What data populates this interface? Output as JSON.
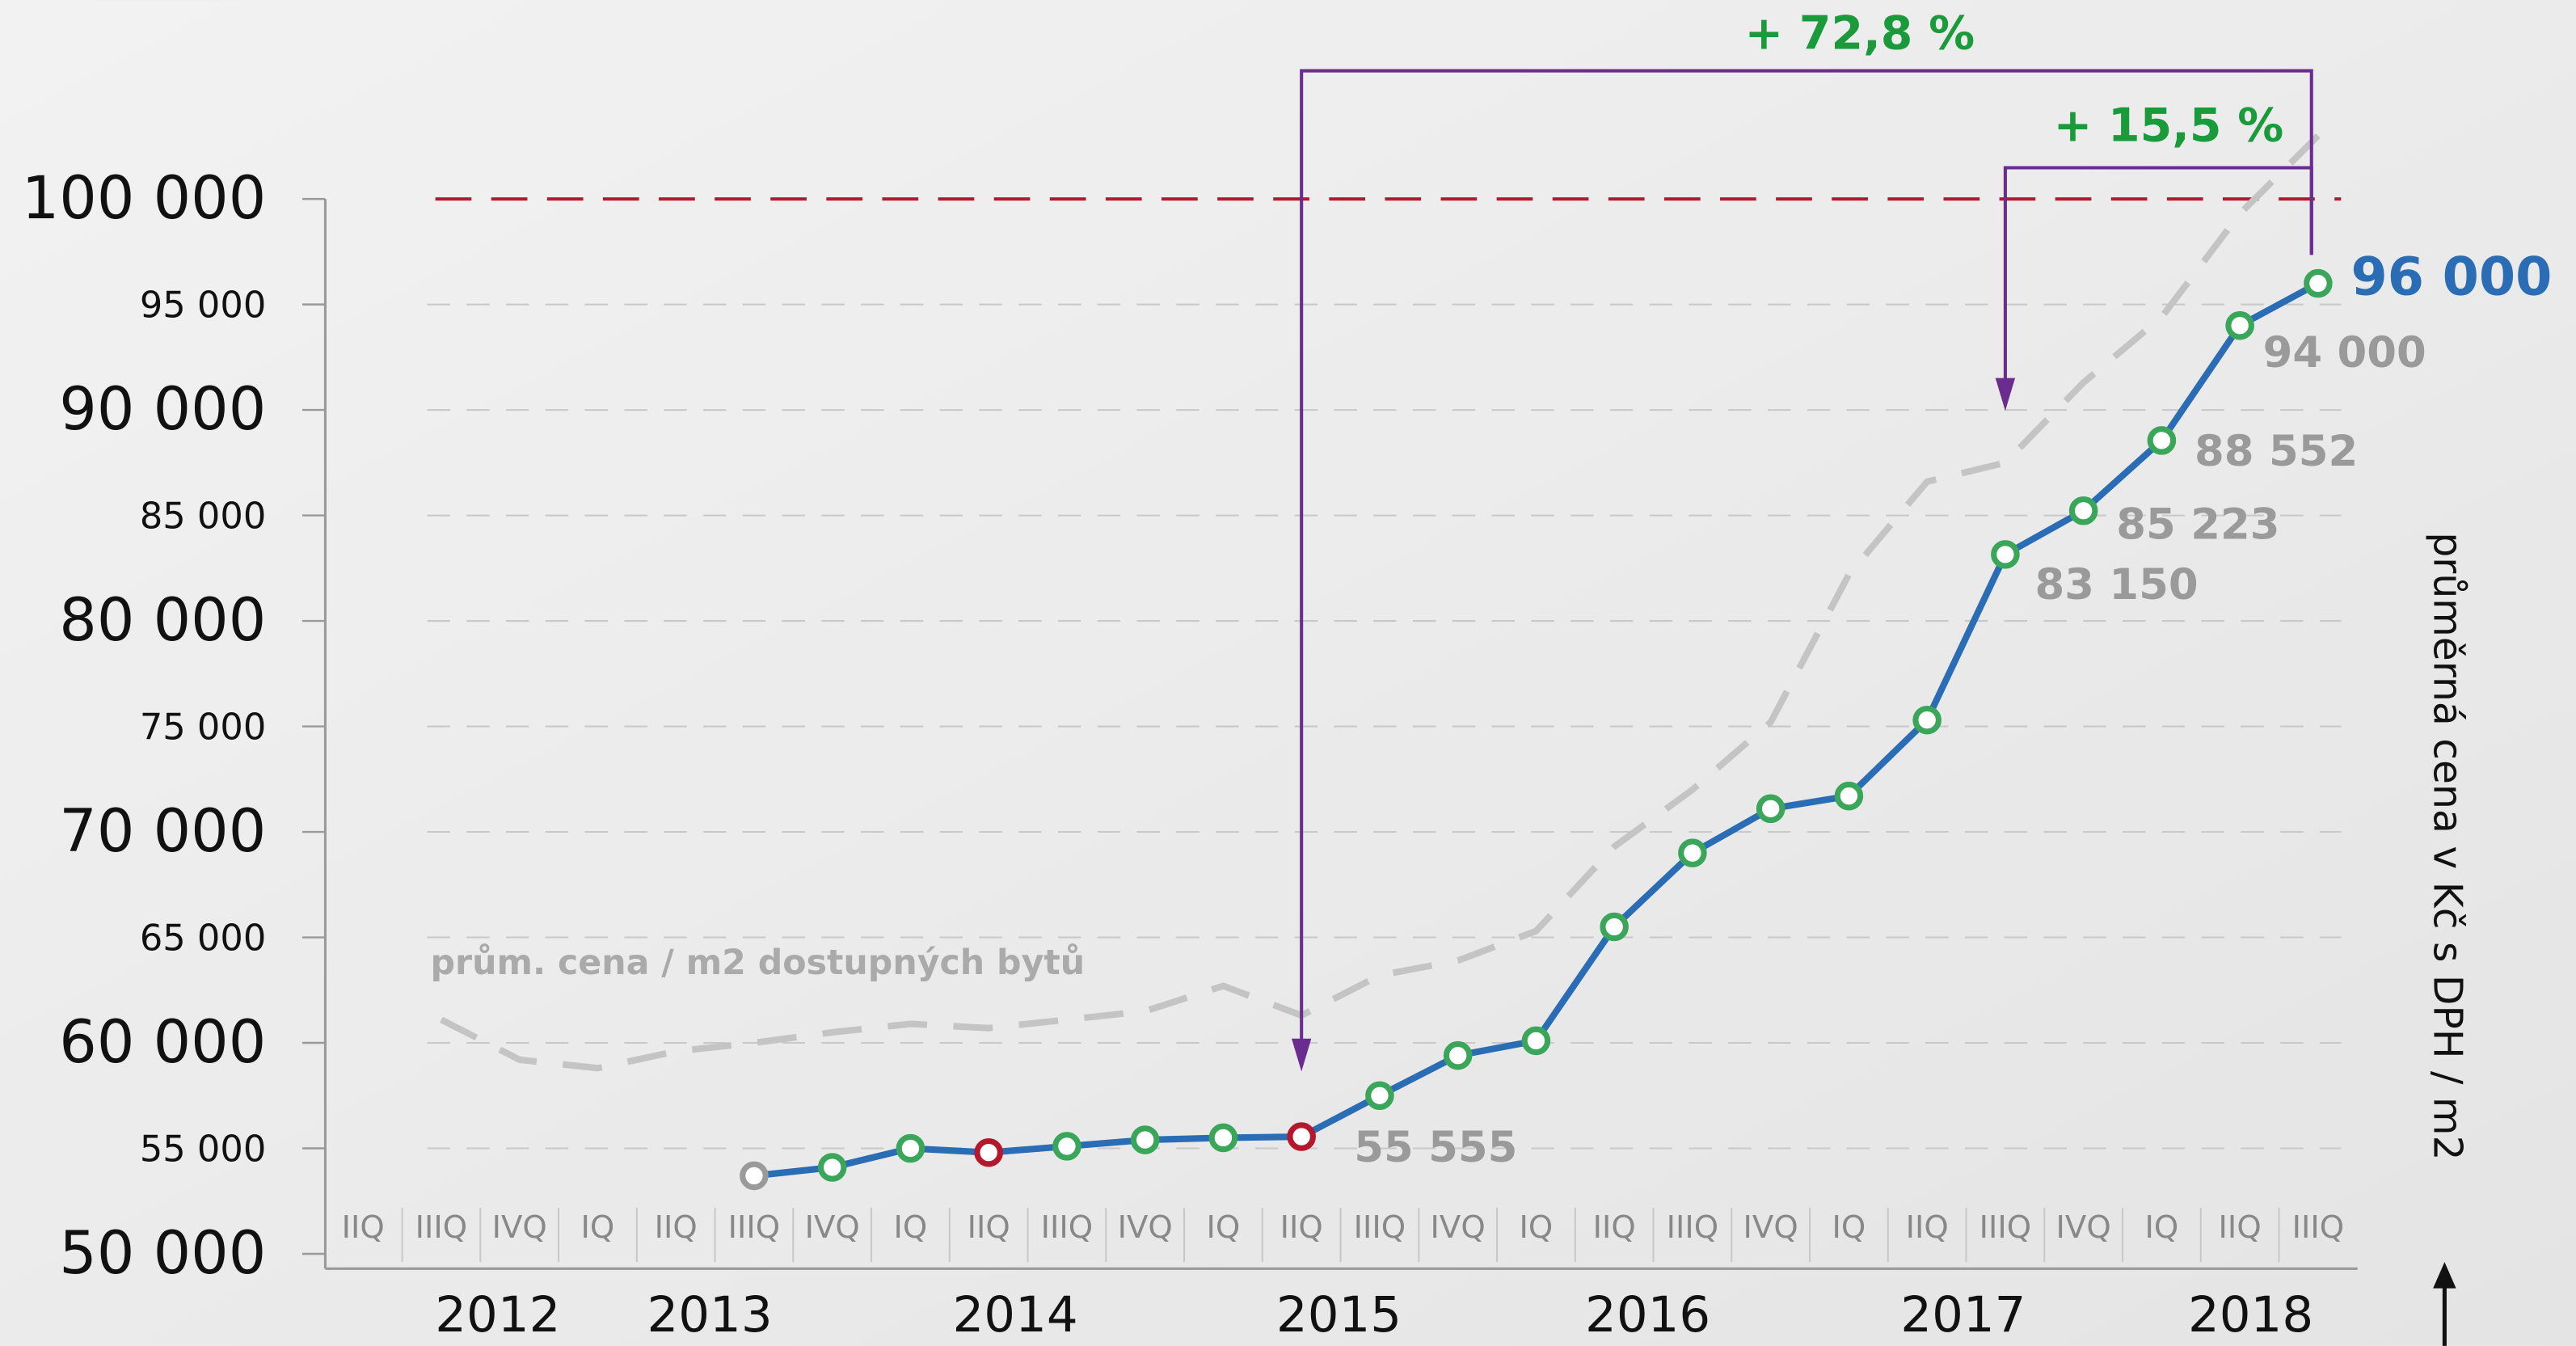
{
  "chart_data": {
    "type": "line",
    "categories": [
      "IIQ",
      "IIIQ",
      "IVQ",
      "IQ",
      "IIQ",
      "IIIQ",
      "IVQ",
      "IQ",
      "IIQ",
      "IIIQ",
      "IVQ",
      "IQ",
      "IIQ",
      "IIIQ",
      "IVQ",
      "IQ",
      "IIQ",
      "IIIQ",
      "IVQ",
      "IQ",
      "IIQ",
      "IIIQ",
      "IVQ",
      "IQ",
      "IIQ",
      "IIIQ"
    ],
    "year_labels": [
      "2012",
      "2013",
      "2014",
      "2015",
      "2016",
      "2017",
      "2018"
    ],
    "series": [
      {
        "name": "prům. cena / m2 dostupných bytů",
        "color": "#c4c4c4",
        "dashed": true,
        "values": [
          null,
          61100,
          59200,
          58800,
          59600,
          60000,
          60500,
          60900,
          60700,
          61100,
          61500,
          62700,
          61300,
          63200,
          63900,
          65300,
          69300,
          72000,
          75200,
          82200,
          86600,
          87500,
          91300,
          94400,
          99300,
          103000
        ]
      },
      {
        "name": null,
        "color": "#2a6db5",
        "values": [
          null,
          null,
          null,
          null,
          null,
          53700,
          54100,
          55000,
          54800,
          55100,
          55400,
          55500,
          55555,
          57500,
          59400,
          60100,
          65500,
          69000,
          71100,
          71700,
          75300,
          83150,
          85223,
          88552,
          94000,
          96000
        ],
        "value_labels": [
          null,
          null,
          null,
          null,
          null,
          null,
          null,
          null,
          null,
          null,
          null,
          null,
          "55 555",
          null,
          null,
          null,
          null,
          null,
          null,
          null,
          null,
          "83 150",
          "85 223",
          "88 552",
          "94 000",
          "96 000"
        ],
        "marker_colors": [
          null,
          null,
          null,
          null,
          null,
          "#9a9a9a",
          "#3aa659",
          "#3aa659",
          "#b5182c",
          "#3aa659",
          "#3aa659",
          "#3aa659",
          "#b5182c",
          "#3aa659",
          "#3aa659",
          "#3aa659",
          "#3aa659",
          "#3aa659",
          "#3aa659",
          "#3aa659",
          "#3aa659",
          "#3aa659",
          "#3aa659",
          "#3aa659",
          "#3aa659",
          "#3aa659"
        ]
      }
    ],
    "ylim": [
      50000,
      100000
    ],
    "yticks": [
      {
        "value": 50000,
        "label": "50 000"
      },
      {
        "value": 55000,
        "label": "55 000"
      },
      {
        "value": 60000,
        "label": "60 000"
      },
      {
        "value": 65000,
        "label": "65 000"
      },
      {
        "value": 70000,
        "label": "70 000"
      },
      {
        "value": 75000,
        "label": "75 000"
      },
      {
        "value": 80000,
        "label": "80 000"
      },
      {
        "value": 85000,
        "label": "85 000"
      },
      {
        "value": 90000,
        "label": "90 000"
      },
      {
        "value": 95000,
        "label": "95 000"
      },
      {
        "value": 100000,
        "label": "100 000"
      }
    ],
    "reference_line": {
      "value": 100000,
      "color": "#b5182c"
    },
    "grid": true,
    "y_label": "průměrná cena v Kč s DPH / m2",
    "annotations": [
      "+ 72,8 %",
      "+ 15,5 %"
    ]
  }
}
